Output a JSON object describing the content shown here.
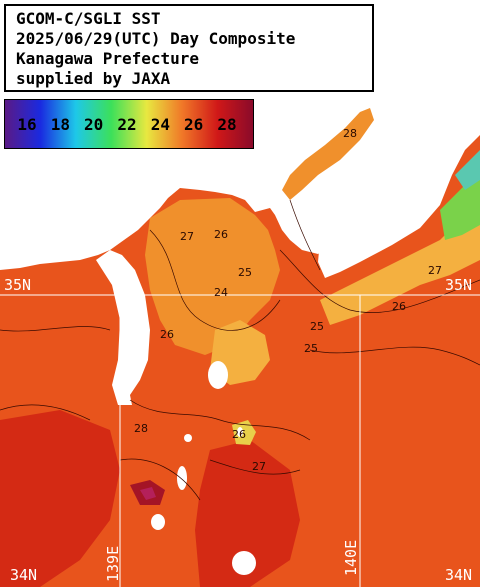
{
  "title": {
    "lines": [
      "GCOM-C/SGLI SST",
      "2025/06/29(UTC) Day Composite",
      "Kanagawa Prefecture",
      "supplied by JAXA"
    ]
  },
  "legend": {
    "ticks": [
      "16",
      "18",
      "20",
      "22",
      "24",
      "26",
      "28"
    ],
    "unit": "",
    "colors": [
      "#5a1a86",
      "#1a2ae0",
      "#1ec8e8",
      "#3ce05a",
      "#e8e840",
      "#f07828",
      "#d01818",
      "#8a0a2a"
    ]
  },
  "coordinates": {
    "lat_35_left": "35N",
    "lat_35_right": "35N",
    "lat_34_left": "34N",
    "lat_34_right": "34N",
    "lon_139": "139E",
    "lon_140": "140E"
  },
  "contour_labels": [
    "28",
    "27",
    "26",
    "25",
    "24",
    "26",
    "25",
    "27",
    "26",
    "28",
    "25",
    "26",
    "27"
  ],
  "colors": {
    "ocean_warm": "#e8541c",
    "ocean_hot": "#d42a14",
    "ocean_cool": "#f0902c",
    "ocean_cooler": "#f4b040",
    "land": "#ffffff",
    "grid": "#ffffff"
  }
}
